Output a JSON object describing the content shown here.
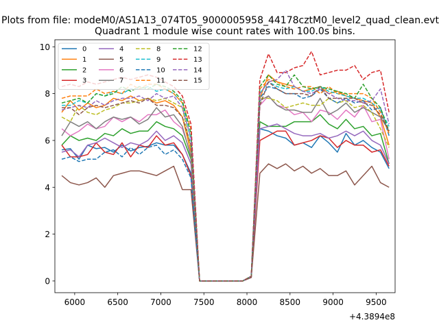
{
  "chart_data": {
    "type": "line",
    "suptitle": "Plots from file: modeM0/AS1A13_074T05_9000005958_44178cztM0_level2_quad_clean.evt",
    "title": "Quadrant 1 module wise count rates with 100.0s bins.",
    "xlabel": "",
    "ylabel": "",
    "x_offset_label": "+4.3894e8",
    "xlim": [
      5770,
      9720
    ],
    "ylim": [
      -0.5,
      10.3
    ],
    "xticks": [
      6000,
      6500,
      7000,
      7500,
      8000,
      8500,
      9000,
      9500
    ],
    "yticks": [
      0,
      2,
      4,
      6,
      8,
      10
    ],
    "grid": false,
    "legend": {
      "placement": "top-left",
      "columns": 4
    },
    "x": [
      5850,
      5950,
      6050,
      6150,
      6250,
      6350,
      6450,
      6550,
      6650,
      6750,
      6850,
      6950,
      7050,
      7150,
      7250,
      7350,
      7450,
      7550,
      7650,
      7750,
      7850,
      7950,
      8050,
      8150,
      8250,
      8350,
      8450,
      8550,
      8650,
      8750,
      8850,
      8950,
      9050,
      9150,
      9250,
      9350,
      9450,
      9550,
      9650
    ],
    "series": [
      {
        "name": "0",
        "color": "#1f77b4",
        "dash": false,
        "values": [
          5.6,
          5.65,
          5.2,
          5.8,
          5.65,
          5.7,
          5.5,
          5.8,
          5.55,
          5.7,
          5.75,
          5.9,
          5.8,
          5.8,
          5.4,
          4.6,
          0,
          0,
          0,
          0,
          0,
          0,
          0.15,
          6.5,
          6.4,
          6.2,
          6.1,
          5.8,
          5.9,
          5.7,
          6.2,
          5.9,
          5.5,
          6.3,
          5.8,
          6.0,
          5.7,
          5.5,
          4.8
        ]
      },
      {
        "name": "1",
        "color": "#ff7f0e",
        "dash": false,
        "values": [
          7.2,
          7.7,
          7.3,
          7.6,
          7.4,
          7.5,
          7.8,
          7.7,
          7.9,
          7.7,
          7.8,
          7.6,
          7.7,
          7.5,
          7.0,
          5.5,
          0,
          0,
          0,
          0,
          0,
          0,
          0.2,
          7.8,
          8.8,
          8.5,
          8.4,
          8.3,
          8.1,
          8.2,
          8.3,
          8.0,
          8.1,
          7.9,
          7.8,
          7.7,
          7.6,
          7.0,
          5.8
        ]
      },
      {
        "name": "2",
        "color": "#2ca02c",
        "dash": false,
        "values": [
          5.8,
          6.2,
          6.0,
          6.1,
          6.0,
          6.3,
          6.2,
          6.5,
          6.3,
          6.4,
          6.4,
          6.8,
          6.6,
          6.5,
          6.2,
          5.2,
          0,
          0,
          0,
          0,
          0,
          0,
          0.2,
          6.8,
          6.6,
          6.6,
          6.6,
          6.8,
          6.8,
          6.8,
          7.1,
          6.7,
          6.5,
          6.9,
          6.5,
          6.6,
          6.2,
          6.3,
          5.0
        ]
      },
      {
        "name": "3",
        "color": "#d62728",
        "dash": false,
        "values": [
          5.8,
          5.3,
          5.3,
          5.4,
          5.9,
          5.5,
          5.4,
          5.9,
          5.3,
          5.8,
          5.7,
          6.2,
          5.8,
          5.9,
          5.4,
          4.5,
          0,
          0,
          0,
          0,
          0,
          0,
          0.15,
          6.0,
          6.2,
          6.4,
          6.4,
          5.8,
          5.9,
          6.0,
          6.2,
          6.1,
          5.7,
          6.0,
          5.8,
          5.8,
          5.5,
          5.6,
          4.9
        ]
      },
      {
        "name": "4",
        "color": "#9467bd",
        "dash": false,
        "values": [
          5.5,
          5.6,
          5.3,
          5.8,
          5.9,
          6.1,
          5.9,
          5.7,
          5.9,
          5.8,
          6.0,
          6.4,
          6.0,
          6.2,
          5.9,
          5.0,
          0,
          0,
          0,
          0,
          0,
          0,
          0.15,
          6.5,
          6.6,
          6.7,
          6.5,
          6.3,
          6.2,
          6.2,
          6.3,
          6.1,
          6.2,
          6.4,
          6.2,
          6.4,
          6.0,
          5.8,
          5.0
        ]
      },
      {
        "name": "5",
        "color": "#8c564b",
        "dash": false,
        "values": [
          4.5,
          4.2,
          4.1,
          4.2,
          4.4,
          4.0,
          4.5,
          4.6,
          4.7,
          4.7,
          4.6,
          4.5,
          4.7,
          4.9,
          3.9,
          3.9,
          0,
          0,
          0,
          0,
          0,
          0,
          0.15,
          4.6,
          5.0,
          4.8,
          5.0,
          4.7,
          4.9,
          4.6,
          4.8,
          4.5,
          4.5,
          4.7,
          4.1,
          4.5,
          4.9,
          4.2,
          4.0
        ]
      },
      {
        "name": "6",
        "color": "#e377c2",
        "dash": false,
        "values": [
          6.5,
          6.2,
          6.4,
          6.7,
          6.5,
          6.6,
          7.0,
          6.8,
          7.0,
          6.8,
          7.1,
          7.1,
          7.3,
          6.8,
          6.5,
          5.4,
          0,
          0,
          0,
          0,
          0,
          0,
          0.2,
          7.5,
          7.9,
          7.5,
          7.4,
          7.1,
          7.2,
          6.8,
          7.3,
          7.2,
          6.9,
          7.3,
          7.0,
          7.5,
          6.8,
          6.9,
          5.2
        ]
      },
      {
        "name": "7",
        "color": "#7f7f7f",
        "dash": false,
        "values": [
          6.2,
          6.8,
          6.6,
          6.8,
          6.5,
          6.8,
          7.0,
          6.9,
          7.0,
          6.7,
          6.9,
          7.4,
          7.0,
          7.1,
          6.6,
          5.3,
          0,
          0,
          0,
          0,
          0,
          0,
          0.2,
          7.7,
          7.9,
          7.5,
          7.3,
          7.3,
          7.2,
          7.2,
          7.8,
          7.1,
          7.3,
          7.6,
          7.2,
          7.4,
          7.2,
          7.0,
          6.4
        ]
      },
      {
        "name": "8",
        "color": "#bcbd22",
        "dash": true,
        "values": [
          7.0,
          6.8,
          7.5,
          7.2,
          7.1,
          7.3,
          7.4,
          7.6,
          7.6,
          7.7,
          7.8,
          7.7,
          7.8,
          7.6,
          7.4,
          5.6,
          0,
          0,
          0,
          0,
          0,
          0,
          0.2,
          7.8,
          7.8,
          7.7,
          7.4,
          7.5,
          7.6,
          7.5,
          7.5,
          7.8,
          7.6,
          7.7,
          7.4,
          7.5,
          7.2,
          6.5,
          5.7
        ]
      },
      {
        "name": "9",
        "color": "#17becf",
        "dash": true,
        "values": [
          7.5,
          7.5,
          7.7,
          7.6,
          8.0,
          7.9,
          8.1,
          8.0,
          8.2,
          8.2,
          8.3,
          8.1,
          8.2,
          8.0,
          7.6,
          6.0,
          0,
          0,
          0,
          0,
          0,
          0,
          0.2,
          8.0,
          8.5,
          8.3,
          8.2,
          8.3,
          8.1,
          8.1,
          8.3,
          8.1,
          8.0,
          7.9,
          7.8,
          7.8,
          7.6,
          7.3,
          6.6
        ]
      },
      {
        "name": "10",
        "color": "#1f77b4",
        "dash": true,
        "values": [
          5.2,
          5.3,
          5.1,
          5.2,
          5.2,
          5.5,
          5.6,
          5.3,
          5.7,
          5.4,
          5.7,
          5.8,
          5.4,
          5.6,
          5.2,
          4.4,
          0,
          0,
          0,
          0,
          0,
          0,
          0.2,
          7.8,
          8.3,
          8.2,
          8.0,
          8.0,
          7.8,
          7.9,
          8.2,
          7.8,
          7.6,
          7.8,
          7.6,
          7.7,
          7.3,
          7.4,
          6.2
        ]
      },
      {
        "name": "11",
        "color": "#ff7f0e",
        "dash": true,
        "values": [
          7.8,
          7.9,
          7.9,
          7.9,
          8.2,
          8.0,
          8.1,
          8.0,
          8.4,
          8.2,
          8.4,
          8.4,
          8.2,
          8.0,
          7.6,
          6.5,
          0,
          0,
          0,
          0,
          0,
          0,
          0.2,
          8.2,
          8.6,
          8.5,
          8.3,
          8.2,
          8.3,
          8.3,
          8.0,
          8.3,
          8.0,
          8.0,
          8.0,
          8.0,
          7.8,
          7.2,
          6.3
        ]
      },
      {
        "name": "12",
        "color": "#2ca02c",
        "dash": true,
        "values": [
          7.6,
          7.7,
          7.8,
          7.6,
          8.0,
          7.9,
          8.0,
          8.3,
          8.1,
          8.3,
          8.2,
          8.4,
          8.3,
          8.1,
          7.7,
          6.3,
          0,
          0,
          0,
          0,
          0,
          0,
          0.2,
          8.3,
          8.8,
          8.4,
          8.3,
          8.8,
          8.3,
          8.2,
          8.3,
          8.2,
          8.1,
          8.0,
          7.8,
          8.4,
          7.8,
          7.4,
          6.4
        ]
      },
      {
        "name": "13",
        "color": "#d62728",
        "dash": true,
        "values": [
          8.3,
          8.4,
          8.3,
          8.5,
          8.4,
          8.5,
          8.6,
          8.7,
          8.6,
          8.7,
          8.8,
          8.7,
          8.5,
          8.3,
          7.9,
          6.7,
          0,
          0,
          0,
          0,
          0,
          0,
          0.2,
          8.6,
          9.7,
          8.9,
          8.9,
          9.1,
          9.2,
          9.8,
          8.8,
          8.9,
          9.0,
          9.0,
          9.2,
          8.6,
          8.9,
          9.0,
          7.2
        ]
      },
      {
        "name": "14",
        "color": "#9467bd",
        "dash": true,
        "values": [
          7.3,
          7.4,
          7.5,
          7.4,
          7.7,
          7.5,
          7.7,
          7.8,
          7.8,
          7.9,
          7.7,
          8.0,
          7.8,
          7.9,
          7.4,
          6.1,
          0,
          0,
          0,
          0,
          0,
          0,
          0.2,
          8.0,
          8.5,
          8.6,
          9.0,
          8.3,
          8.1,
          8.0,
          8.2,
          8.0,
          7.8,
          7.7,
          7.7,
          7.6,
          7.7,
          8.2,
          6.7
        ]
      },
      {
        "name": "15",
        "color": "#8c564b",
        "dash": true,
        "values": [
          7.4,
          7.4,
          7.1,
          7.4,
          7.5,
          7.4,
          7.5,
          7.6,
          7.7,
          7.6,
          7.8,
          7.5,
          7.5,
          7.4,
          7.0,
          5.8,
          0,
          0,
          0,
          0,
          0,
          0,
          0.2,
          7.5,
          8.5,
          8.2,
          8.0,
          8.0,
          8.0,
          7.9,
          8.3,
          7.8,
          7.8,
          7.8,
          7.8,
          7.6,
          7.5,
          7.1,
          6.4
        ]
      }
    ]
  }
}
